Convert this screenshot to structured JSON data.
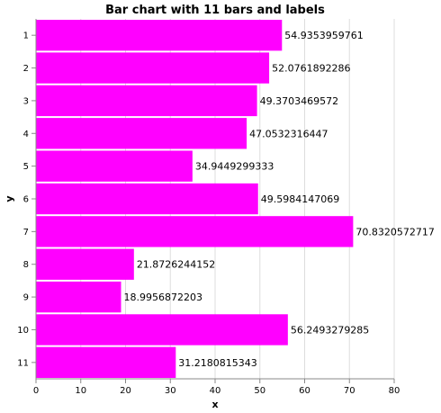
{
  "chart_data": {
    "type": "bar",
    "orientation": "horizontal",
    "title": "Bar chart with 11 bars and labels",
    "xlabel": "x",
    "ylabel": "y",
    "categories": [
      "1",
      "2",
      "3",
      "4",
      "5",
      "6",
      "7",
      "8",
      "9",
      "10",
      "11"
    ],
    "values": [
      54.9353959761,
      52.0761892286,
      49.3703469572,
      47.0532316447,
      34.9449299333,
      49.5984147069,
      70.8320572717,
      21.8726244152,
      18.9956872203,
      56.2493279285,
      31.2180815343
    ],
    "labels": [
      "54.9353959761",
      "52.0761892286",
      "49.3703469572",
      "47.0532316447",
      "34.9449299333",
      "49.5984147069",
      "70.8320572717",
      "21.8726244152",
      "18.9956872203",
      "56.2493279285",
      "31.2180815343"
    ],
    "xlim": [
      0,
      80
    ],
    "xticks": [
      0,
      10,
      20,
      30,
      40,
      50,
      60,
      70,
      80
    ],
    "grid": true,
    "bar_color": "#ff00ff"
  }
}
